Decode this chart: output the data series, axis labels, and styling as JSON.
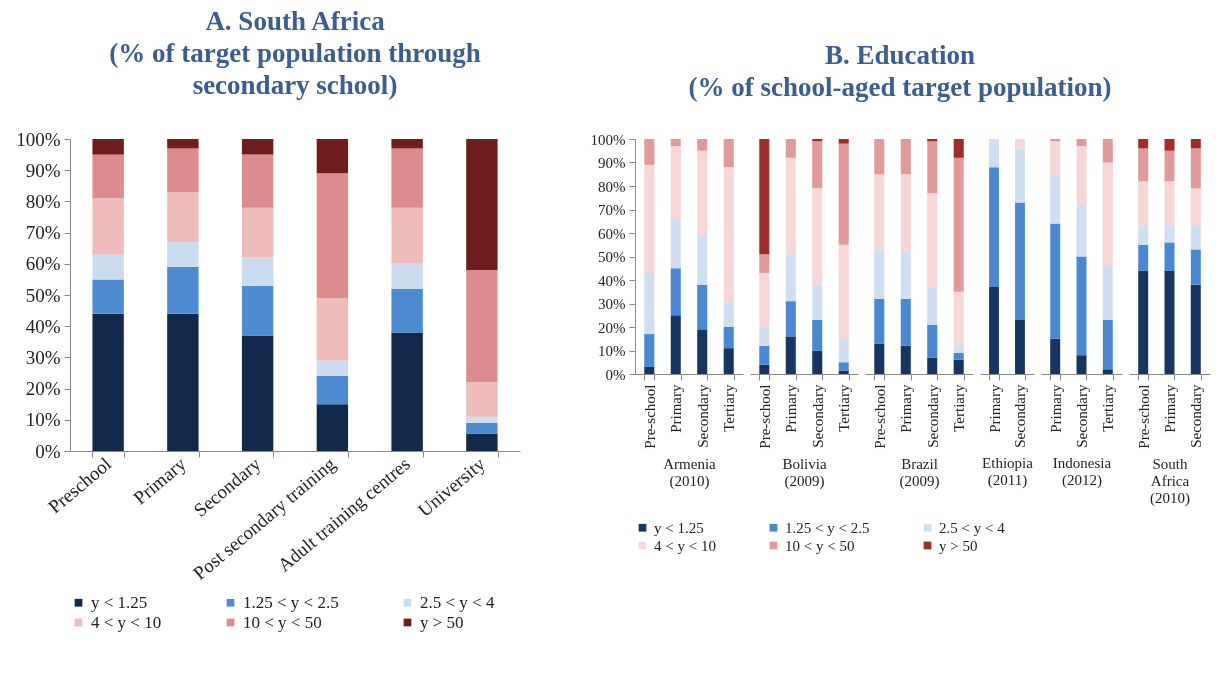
{
  "chart_data": [
    {
      "type": "bar",
      "stacked": true,
      "title": "A.  South Africa (% of target population through secondary school)",
      "categories": [
        "Preschool",
        "Primary",
        "Secondary",
        "Post secondary training",
        "Adult training centres",
        "University"
      ],
      "ylim": [
        0,
        100
      ],
      "yticks": [
        {
          "value": 0,
          "label": "0%"
        },
        {
          "value": 10,
          "label": "10%"
        },
        {
          "value": 20,
          "label": "20%"
        },
        {
          "value": 30,
          "label": "30%"
        },
        {
          "value": 40,
          "label": "40%"
        },
        {
          "value": 50,
          "label": "50%"
        },
        {
          "value": 60,
          "label": "60%"
        },
        {
          "value": 70,
          "label": "70%"
        },
        {
          "value": 80,
          "label": "80%"
        },
        {
          "value": 90,
          "label": "90%"
        },
        {
          "value": 100,
          "label": "100%"
        }
      ],
      "legend": "bottom",
      "series": [
        {
          "name": "y < 1.25",
          "color": "#13294b",
          "values": [
            44,
            44,
            37,
            15,
            38,
            5.5
          ]
        },
        {
          "name": "1.25 < y < 2.5",
          "color": "#4f8bd0",
          "values": [
            11,
            15,
            16,
            9,
            14,
            3.5
          ]
        },
        {
          "name": "2.5 < y < 4",
          "color": "#c9dcf0",
          "values": [
            8,
            8,
            9,
            5,
            8,
            2
          ]
        },
        {
          "name": "4 < y < 10",
          "color": "#efbcbc",
          "values": [
            18,
            16,
            16,
            20,
            18,
            11
          ]
        },
        {
          "name": "10 < y < 50",
          "color": "#dc8c8c",
          "values": [
            14,
            14,
            17,
            40,
            19,
            36
          ]
        },
        {
          "name": "y > 50",
          "color": "#6e1c1c",
          "values": [
            5,
            3,
            5,
            11,
            3,
            42
          ]
        }
      ]
    },
    {
      "type": "bar",
      "stacked": true,
      "title": "B.  Education (% of school-aged target population)",
      "xlabel": "Armenia (2010)",
      "categories": [
        "Pre-school",
        "Primary",
        "Secondary",
        "Tertiary"
      ],
      "ylim": [
        0,
        100
      ],
      "yticks": [
        {
          "value": 0,
          "label": "0%"
        },
        {
          "value": 10,
          "label": "10%"
        },
        {
          "value": 20,
          "label": "20%"
        },
        {
          "value": 30,
          "label": "30%"
        },
        {
          "value": 40,
          "label": "40%"
        },
        {
          "value": 50,
          "label": "50%"
        },
        {
          "value": 60,
          "label": "60%"
        },
        {
          "value": 70,
          "label": "70%"
        },
        {
          "value": 80,
          "label": "80%"
        },
        {
          "value": 90,
          "label": "90%"
        },
        {
          "value": 100,
          "label": "100%"
        }
      ],
      "legend": "bottom",
      "series": [
        {
          "name": "y < 1.25",
          "color": "#16365f",
          "values": [
            3,
            25,
            19,
            11
          ]
        },
        {
          "name": "1.25 < y < 2.5",
          "color": "#4a88d2",
          "values": [
            14,
            20,
            19,
            9
          ]
        },
        {
          "name": "2.5 < y < 4",
          "color": "#cfdef0",
          "values": [
            26,
            21,
            21,
            11
          ]
        },
        {
          "name": "4 < y < 10",
          "color": "#f6d6d6",
          "values": [
            46,
            31,
            36,
            57
          ]
        },
        {
          "name": "10 < y < 50",
          "color": "#e09a9a",
          "values": [
            11,
            3,
            5,
            12
          ]
        },
        {
          "name": "y > 50",
          "color": "#a02c2c",
          "values": [
            0,
            0,
            0,
            0
          ]
        }
      ]
    },
    {
      "type": "bar",
      "stacked": true,
      "xlabel": "Bolivia (2009)",
      "tick_labels": "x",
      "categories": [
        "Pre-school",
        "Primary",
        "Secondary",
        "Tertiary"
      ],
      "ylim": [
        0,
        100
      ],
      "series": [
        {
          "color": "#16365f",
          "values": [
            4,
            16,
            10,
            1.5
          ]
        },
        {
          "color": "#4a88d2",
          "values": [
            8,
            15,
            13,
            3.5
          ]
        },
        {
          "color": "#cfdef0",
          "values": [
            8,
            20,
            15,
            10
          ]
        },
        {
          "color": "#f6d6d6",
          "values": [
            23,
            41,
            41,
            40
          ]
        },
        {
          "color": "#e09a9a",
          "values": [
            8,
            8,
            20,
            43
          ]
        },
        {
          "color": "#a02c2c",
          "values": [
            49,
            0,
            1,
            2
          ]
        }
      ]
    },
    {
      "type": "bar",
      "stacked": true,
      "xlabel": "Brazil (2009)",
      "tick_labels": "x",
      "categories": [
        "Pre-school",
        "Primary",
        "Secondary",
        "Tertiary"
      ],
      "ylim": [
        0,
        100
      ],
      "series": [
        {
          "color": "#16365f",
          "values": [
            13,
            12,
            7,
            6
          ]
        },
        {
          "color": "#4a88d2",
          "values": [
            19,
            20,
            14,
            3
          ]
        },
        {
          "color": "#cfdef0",
          "values": [
            21,
            20,
            16,
            3
          ]
        },
        {
          "color": "#f6d6d6",
          "values": [
            32,
            33,
            40,
            23
          ]
        },
        {
          "color": "#e09a9a",
          "values": [
            15,
            15,
            22,
            57
          ]
        },
        {
          "color": "#a02c2c",
          "values": [
            0,
            0,
            1,
            8
          ]
        }
      ]
    },
    {
      "type": "bar",
      "stacked": true,
      "xlabel": "Ethiopia (2011)",
      "tick_labels": "x",
      "categories": [
        "Primary",
        "Secondary"
      ],
      "ylim": [
        0,
        100
      ],
      "series": [
        {
          "color": "#16365f",
          "values": [
            37,
            23
          ]
        },
        {
          "color": "#4a88d2",
          "values": [
            51,
            50
          ]
        },
        {
          "color": "#cfdef0",
          "values": [
            12,
            23
          ]
        },
        {
          "color": "#f6d6d6",
          "values": [
            0,
            4
          ]
        },
        {
          "color": "#e09a9a",
          "values": [
            0,
            0
          ]
        },
        {
          "color": "#a02c2c",
          "values": [
            0,
            0
          ]
        }
      ]
    },
    {
      "type": "bar",
      "stacked": true,
      "xlabel": "Indonesia (2012)",
      "tick_labels": "x",
      "categories": [
        "Primary",
        "Secondary",
        "Tertiary"
      ],
      "ylim": [
        0,
        100
      ],
      "series": [
        {
          "color": "#16365f",
          "values": [
            15,
            8,
            2
          ]
        },
        {
          "color": "#4a88d2",
          "values": [
            49,
            42,
            21
          ]
        },
        {
          "color": "#cfdef0",
          "values": [
            21,
            22,
            23
          ]
        },
        {
          "color": "#f6d6d6",
          "values": [
            14,
            25,
            44
          ]
        },
        {
          "color": "#e09a9a",
          "values": [
            1,
            3,
            10
          ]
        },
        {
          "color": "#a02c2c",
          "values": [
            0,
            0,
            0
          ]
        }
      ]
    },
    {
      "type": "bar",
      "stacked": true,
      "xlabel": "South Africa (2010)",
      "tick_labels": "x",
      "categories": [
        "Pre-school",
        "Primary",
        "Secondary"
      ],
      "ylim": [
        0,
        100
      ],
      "series": [
        {
          "color": "#16365f",
          "values": [
            44,
            44,
            38
          ]
        },
        {
          "color": "#4a88d2",
          "values": [
            11,
            12,
            15
          ]
        },
        {
          "color": "#cfdef0",
          "values": [
            8,
            7,
            10
          ]
        },
        {
          "color": "#f6d6d6",
          "values": [
            19,
            19,
            16
          ]
        },
        {
          "color": "#e09a9a",
          "values": [
            14,
            13,
            17
          ]
        },
        {
          "color": "#a02c2c",
          "values": [
            4,
            5,
            4
          ]
        }
      ]
    }
  ]
}
